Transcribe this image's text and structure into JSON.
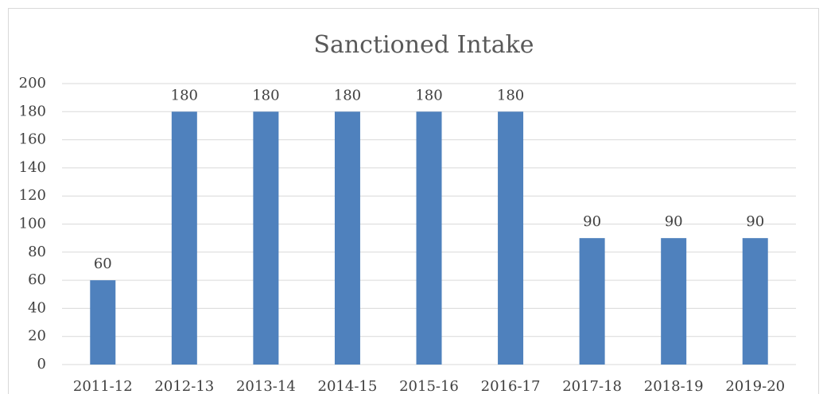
{
  "chart_data": {
    "type": "bar",
    "title": "Sanctioned Intake",
    "categories": [
      "2011-12",
      "2012-13",
      "2013-14",
      "2014-15",
      "2015-16",
      "2016-17",
      "2017-18",
      "2018-19",
      "2019-20"
    ],
    "values": [
      60,
      180,
      180,
      180,
      180,
      180,
      90,
      90,
      90
    ],
    "color": "#4f81bd",
    "ylim": [
      0,
      200
    ],
    "yticks": [
      0,
      20,
      40,
      60,
      80,
      100,
      120,
      140,
      160,
      180,
      200
    ],
    "grid": true
  }
}
